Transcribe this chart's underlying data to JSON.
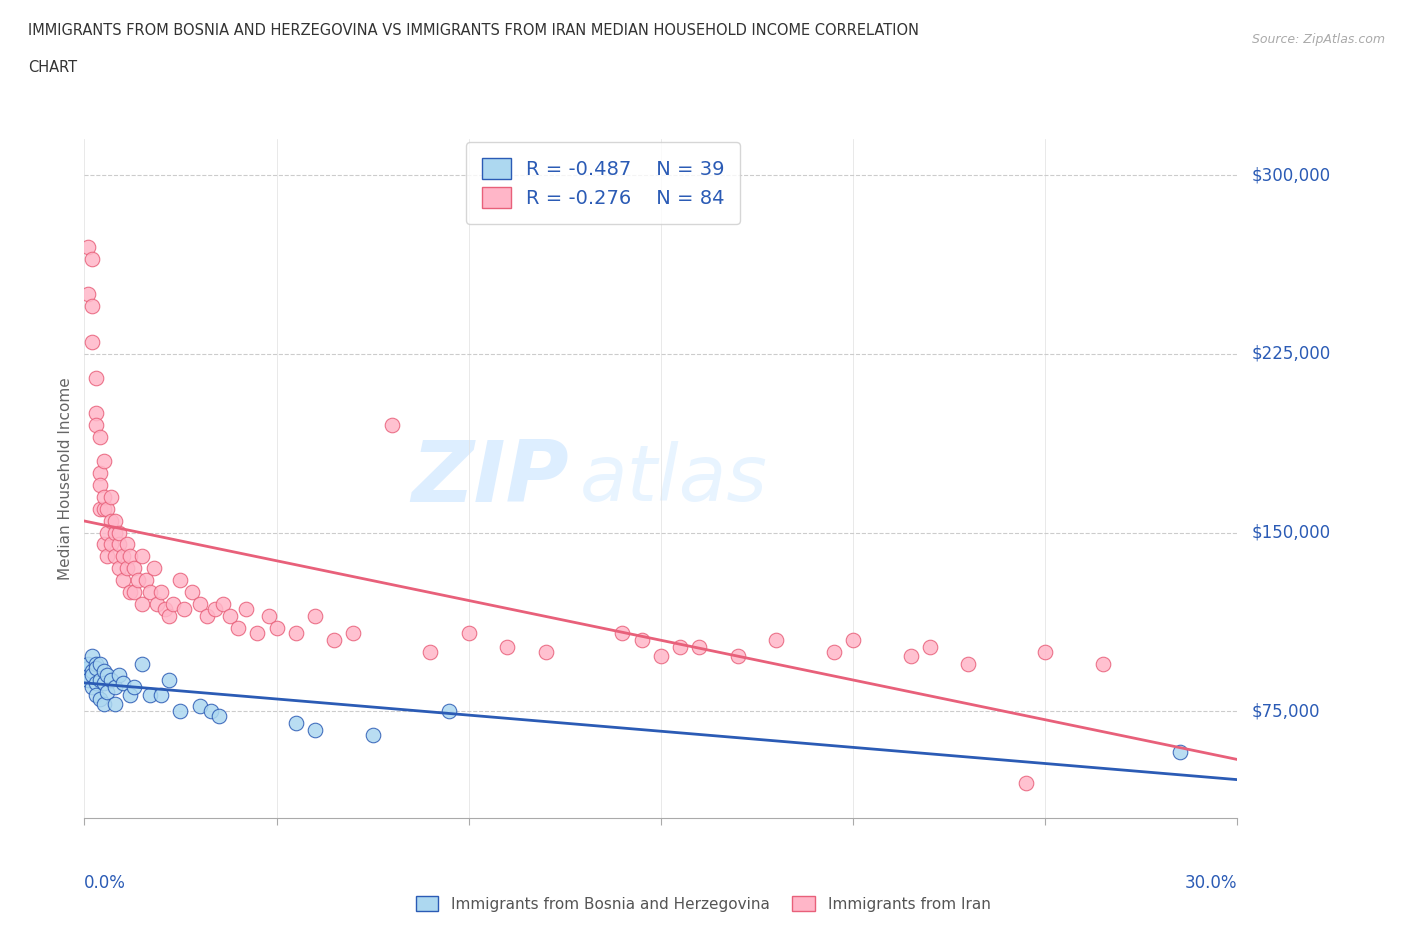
{
  "title_line1": "IMMIGRANTS FROM BOSNIA AND HERZEGOVINA VS IMMIGRANTS FROM IRAN MEDIAN HOUSEHOLD INCOME CORRELATION",
  "title_line2": "CHART",
  "source": "Source: ZipAtlas.com",
  "ylabel": "Median Household Income",
  "color_bosnia": "#ADD8F0",
  "color_iran": "#FFB6C8",
  "line_color_bosnia": "#2B5BB5",
  "line_color_iran": "#E8607A",
  "legend_R_bosnia": "R = -0.487",
  "legend_N_bosnia": "N = 39",
  "legend_R_iran": "R = -0.276",
  "legend_N_iran": "N = 84",
  "watermark_zip": "ZIP",
  "watermark_atlas": "atlas",
  "ytick_values": [
    75000,
    150000,
    225000,
    300000
  ],
  "ytick_labels": [
    "$75,000",
    "$150,000",
    "$225,000",
    "$300,000"
  ],
  "xtick_values": [
    0.0,
    0.05,
    0.1,
    0.15,
    0.2,
    0.25,
    0.3
  ],
  "xmin": 0.0,
  "xmax": 0.3,
  "ymin": 30000,
  "ymax": 315000,
  "bosnia_x": [
    0.001,
    0.001,
    0.001,
    0.002,
    0.002,
    0.002,
    0.002,
    0.003,
    0.003,
    0.003,
    0.003,
    0.004,
    0.004,
    0.004,
    0.005,
    0.005,
    0.005,
    0.006,
    0.006,
    0.007,
    0.008,
    0.008,
    0.009,
    0.01,
    0.012,
    0.013,
    0.015,
    0.017,
    0.02,
    0.022,
    0.025,
    0.03,
    0.033,
    0.035,
    0.055,
    0.06,
    0.075,
    0.095,
    0.285
  ],
  "bosnia_y": [
    93000,
    88000,
    95000,
    92000,
    85000,
    98000,
    90000,
    87000,
    95000,
    82000,
    93000,
    88000,
    95000,
    80000,
    92000,
    87000,
    78000,
    90000,
    83000,
    88000,
    85000,
    78000,
    90000,
    87000,
    82000,
    85000,
    95000,
    82000,
    82000,
    88000,
    75000,
    77000,
    75000,
    73000,
    70000,
    67000,
    65000,
    75000,
    58000
  ],
  "iran_x": [
    0.001,
    0.001,
    0.002,
    0.002,
    0.002,
    0.003,
    0.003,
    0.003,
    0.004,
    0.004,
    0.004,
    0.004,
    0.005,
    0.005,
    0.005,
    0.005,
    0.006,
    0.006,
    0.006,
    0.007,
    0.007,
    0.007,
    0.008,
    0.008,
    0.008,
    0.009,
    0.009,
    0.009,
    0.01,
    0.01,
    0.011,
    0.011,
    0.012,
    0.012,
    0.013,
    0.013,
    0.014,
    0.015,
    0.015,
    0.016,
    0.017,
    0.018,
    0.019,
    0.02,
    0.021,
    0.022,
    0.023,
    0.025,
    0.026,
    0.028,
    0.03,
    0.032,
    0.034,
    0.036,
    0.038,
    0.04,
    0.042,
    0.045,
    0.048,
    0.05,
    0.055,
    0.06,
    0.065,
    0.07,
    0.08,
    0.09,
    0.1,
    0.11,
    0.12,
    0.14,
    0.155,
    0.17,
    0.18,
    0.195,
    0.2,
    0.215,
    0.22,
    0.23,
    0.25,
    0.265,
    0.145,
    0.15,
    0.16,
    0.245
  ],
  "iran_y": [
    270000,
    250000,
    265000,
    230000,
    245000,
    200000,
    215000,
    195000,
    175000,
    190000,
    160000,
    170000,
    180000,
    160000,
    145000,
    165000,
    160000,
    150000,
    140000,
    165000,
    145000,
    155000,
    150000,
    140000,
    155000,
    145000,
    135000,
    150000,
    140000,
    130000,
    145000,
    135000,
    140000,
    125000,
    135000,
    125000,
    130000,
    140000,
    120000,
    130000,
    125000,
    135000,
    120000,
    125000,
    118000,
    115000,
    120000,
    130000,
    118000,
    125000,
    120000,
    115000,
    118000,
    120000,
    115000,
    110000,
    118000,
    108000,
    115000,
    110000,
    108000,
    115000,
    105000,
    108000,
    195000,
    100000,
    108000,
    102000,
    100000,
    108000,
    102000,
    98000,
    105000,
    100000,
    105000,
    98000,
    102000,
    95000,
    100000,
    95000,
    105000,
    98000,
    102000,
    45000
  ]
}
